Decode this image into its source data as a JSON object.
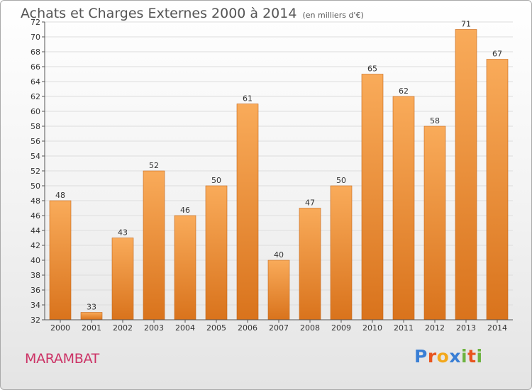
{
  "title": "Achats et Charges Externes 2000 à 2014",
  "subtitle": "(en milliers d'€)",
  "region": "MARAMBAT",
  "logo": {
    "letters": [
      "P",
      "r",
      "o",
      "x",
      "i",
      "t",
      "i"
    ],
    "colors": [
      "#3a7fd5",
      "#e8541e",
      "#f3a81c",
      "#3a7fd5",
      "#6db33f",
      "#e8541e",
      "#6db33f"
    ]
  },
  "colors": {
    "bar_light": "#f9ab5a",
    "bar_dark": "#d9731c",
    "bar_stroke": "#c4661a",
    "region": "#cc3366",
    "grid": "#dddddd"
  },
  "chart_data": {
    "type": "bar",
    "title": "Achats et Charges Externes 2000 à 2014",
    "subtitle": "(en milliers d'€)",
    "categories": [
      "2000",
      "2001",
      "2002",
      "2003",
      "2004",
      "2005",
      "2006",
      "2007",
      "2008",
      "2009",
      "2010",
      "2011",
      "2012",
      "2013",
      "2014"
    ],
    "values": [
      48,
      33,
      43,
      52,
      46,
      50,
      61,
      40,
      47,
      50,
      65,
      62,
      58,
      71,
      67
    ],
    "ylim": [
      32,
      72
    ],
    "yticks": [
      32,
      34,
      36,
      38,
      40,
      42,
      44,
      46,
      48,
      50,
      52,
      54,
      56,
      58,
      60,
      62,
      64,
      66,
      68,
      70,
      72
    ],
    "grid": true,
    "data_labels": true
  }
}
